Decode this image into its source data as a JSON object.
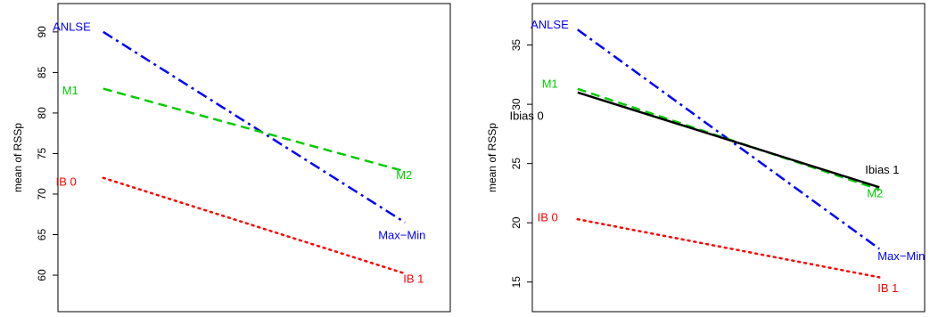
{
  "chart_data": [
    {
      "type": "line",
      "title": "",
      "xlabel": "",
      "ylabel": "mean of RSSp",
      "x": [
        1,
        2
      ],
      "xlim": [
        0.85,
        2.15
      ],
      "ylim": [
        55.5,
        93.5
      ],
      "yticks": [
        60,
        65,
        70,
        75,
        80,
        85,
        90
      ],
      "grid": false,
      "legend": "none",
      "series": [
        {
          "start_label": "ANLSE",
          "end_label": "Max−Min",
          "values": [
            90.0,
            66.5
          ],
          "color": "#0000ff",
          "style": "dashdot"
        },
        {
          "start_label": "M1",
          "end_label": "M2",
          "values": [
            83.0,
            72.8
          ],
          "color": "#00cc00",
          "style": "dashed"
        },
        {
          "start_label": "IB 0",
          "end_label": "IB 1",
          "values": [
            72.0,
            60.2
          ],
          "color": "#ff0000",
          "style": "dotted"
        }
      ]
    },
    {
      "type": "line",
      "title": "",
      "xlabel": "",
      "ylabel": "mean of RSSp",
      "x": [
        1,
        2
      ],
      "xlim": [
        0.85,
        2.15
      ],
      "ylim": [
        12.5,
        38.5
      ],
      "yticks": [
        15,
        20,
        25,
        30,
        35
      ],
      "grid": false,
      "legend": "none",
      "series": [
        {
          "start_label": "ANLSE",
          "end_label": "Max−Min",
          "values": [
            36.3,
            17.8
          ],
          "color": "#0000ff",
          "style": "dashdot"
        },
        {
          "start_label": "M1",
          "end_label": "M2",
          "values": [
            31.3,
            22.8
          ],
          "color": "#00cc00",
          "style": "dashed"
        },
        {
          "start_label": "Ibias 0",
          "end_label": "Ibias 1",
          "values": [
            31.0,
            23.0
          ],
          "color": "#000000",
          "style": "solid"
        },
        {
          "start_label": "IB 0",
          "end_label": "IB 1",
          "values": [
            20.3,
            15.4
          ],
          "color": "#ff0000",
          "style": "dotted"
        }
      ]
    }
  ]
}
